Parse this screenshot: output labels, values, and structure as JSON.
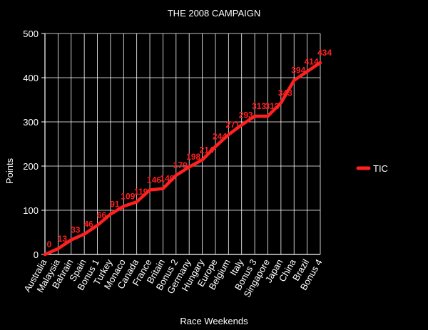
{
  "chart_data": {
    "type": "line",
    "title": "THE 2008 CAMPAIGN",
    "xlabel": "Race Weekends",
    "ylabel": "Points",
    "ylim": [
      0,
      500
    ],
    "yticks": [
      0,
      100,
      200,
      300,
      400,
      500
    ],
    "grid": true,
    "legend_position": "right",
    "categories": [
      "Australia",
      "Malaysia",
      "Bahrain",
      "Spain",
      "Bonus 1",
      "Turkey",
      "Monaco",
      "Canada",
      "France",
      "Britain",
      "Bonus 2",
      "Germany",
      "Hungary",
      "Europe",
      "Belgium",
      "Italy",
      "Bonus 3",
      "Singapore",
      "Japan",
      "China",
      "Brazil",
      "Bonus 4"
    ],
    "series": [
      {
        "name": "TIC",
        "color": "#ff2020",
        "values": [
          0,
          13,
          33,
          46,
          66,
          91,
          109,
          119,
          146,
          149,
          179,
          198,
          214,
          244,
          271,
          293,
          313,
          313,
          343,
          394,
          414,
          434
        ]
      }
    ]
  }
}
